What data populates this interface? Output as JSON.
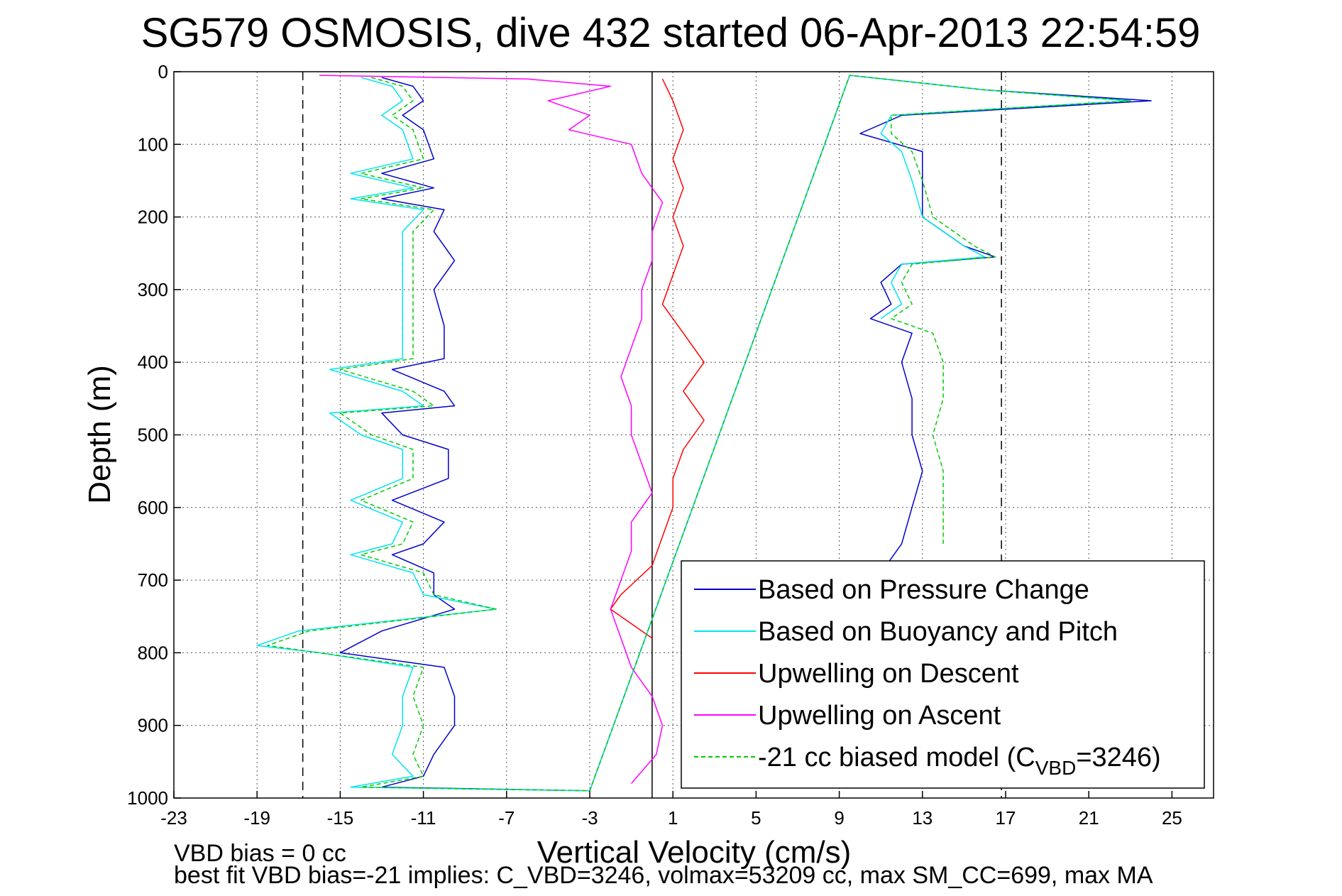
{
  "chart_data": {
    "type": "line",
    "title": "SG579 OSMOSIS, dive 432 started 06-Apr-2013 22:54:59",
    "xlabel": "Vertical Velocity (cm/s)",
    "ylabel": "Depth (m)",
    "xlim": [
      -23,
      27
    ],
    "ylim": [
      0,
      1000
    ],
    "y_reversed": true,
    "grid": true,
    "legend_position": "bottom-right",
    "xticks": [
      -23,
      -19,
      -15,
      -11,
      -7,
      -3,
      1,
      5,
      9,
      13,
      17,
      21,
      25
    ],
    "xtick_labels": [
      "-23",
      "-19",
      "-15",
      "-11",
      "-7",
      "-3",
      "1",
      "5",
      "9",
      "13",
      "17",
      "21",
      "25"
    ],
    "yticks": [
      0,
      100,
      200,
      300,
      400,
      500,
      600,
      700,
      800,
      900,
      1000
    ],
    "ytick_labels": [
      "0",
      "100",
      "200",
      "300",
      "400",
      "500",
      "600",
      "700",
      "800",
      "900",
      "1000"
    ],
    "reference_lines": [
      {
        "x": -16.8,
        "style": "dashed",
        "color": "#000000"
      },
      {
        "x": 16.8,
        "style": "dashed",
        "color": "#000000"
      },
      {
        "x": 0,
        "style": "solid",
        "color": "#000000"
      }
    ],
    "series": [
      {
        "name": "Based on Pressure Change",
        "color": "#0000cc",
        "points": [
          [
            -13,
            8
          ],
          [
            -11.5,
            20
          ],
          [
            -11,
            40
          ],
          [
            -12,
            60
          ],
          [
            -11,
            80
          ],
          [
            -10.5,
            120
          ],
          [
            -13,
            140
          ],
          [
            -10.5,
            160
          ],
          [
            -13,
            175
          ],
          [
            -10,
            190
          ],
          [
            -10.5,
            220
          ],
          [
            -9.5,
            260
          ],
          [
            -10.5,
            300
          ],
          [
            -10,
            350
          ],
          [
            -10,
            395
          ],
          [
            -12.5,
            410
          ],
          [
            -10,
            440
          ],
          [
            -9.5,
            460
          ],
          [
            -13,
            470
          ],
          [
            -12,
            500
          ],
          [
            -9.8,
            520
          ],
          [
            -9.8,
            560
          ],
          [
            -12.5,
            590
          ],
          [
            -10,
            620
          ],
          [
            -11,
            650
          ],
          [
            -12.5,
            665
          ],
          [
            -10.5,
            690
          ],
          [
            -10.5,
            720
          ],
          [
            -9.5,
            740
          ],
          [
            -13,
            770
          ],
          [
            -15,
            800
          ],
          [
            -10,
            820
          ],
          [
            -9.5,
            860
          ],
          [
            -9.5,
            900
          ],
          [
            -10.5,
            940
          ],
          [
            -11,
            970
          ],
          [
            -13,
            985
          ],
          [
            -3,
            990
          ],
          [
            9.5,
            5
          ],
          [
            16,
            25
          ],
          [
            24,
            40
          ],
          [
            12,
            60
          ],
          [
            10,
            85
          ],
          [
            13,
            110
          ],
          [
            13,
            150
          ],
          [
            13,
            200
          ],
          [
            15,
            240
          ],
          [
            16.5,
            255
          ],
          [
            12,
            265
          ],
          [
            11,
            290
          ],
          [
            11.5,
            320
          ],
          [
            10.5,
            340
          ],
          [
            12.5,
            360
          ],
          [
            12,
            400
          ],
          [
            12.5,
            450
          ],
          [
            12.5,
            500
          ],
          [
            13,
            550
          ],
          [
            12.5,
            600
          ],
          [
            12,
            650
          ],
          [
            11,
            690
          ]
        ]
      },
      {
        "name": "Based on Buoyancy and Pitch",
        "color": "#00e5ee",
        "points": [
          [
            -14,
            8
          ],
          [
            -12.5,
            20
          ],
          [
            -12,
            40
          ],
          [
            -13,
            60
          ],
          [
            -12,
            80
          ],
          [
            -11.5,
            120
          ],
          [
            -14.5,
            140
          ],
          [
            -11.5,
            160
          ],
          [
            -14.5,
            175
          ],
          [
            -11,
            190
          ],
          [
            -12,
            220
          ],
          [
            -12,
            260
          ],
          [
            -12,
            300
          ],
          [
            -12,
            350
          ],
          [
            -12,
            395
          ],
          [
            -15.5,
            410
          ],
          [
            -12,
            440
          ],
          [
            -11,
            460
          ],
          [
            -15.5,
            470
          ],
          [
            -14,
            500
          ],
          [
            -12,
            520
          ],
          [
            -12,
            560
          ],
          [
            -14.5,
            590
          ],
          [
            -12,
            620
          ],
          [
            -12.5,
            650
          ],
          [
            -14.5,
            665
          ],
          [
            -11.5,
            690
          ],
          [
            -11,
            720
          ],
          [
            -7.5,
            740
          ],
          [
            -17,
            770
          ],
          [
            -19,
            790
          ],
          [
            -16,
            800
          ],
          [
            -11.5,
            820
          ],
          [
            -12,
            860
          ],
          [
            -12,
            900
          ],
          [
            -12.5,
            940
          ],
          [
            -11.5,
            970
          ],
          [
            -14.5,
            985
          ],
          [
            -3,
            990
          ],
          [
            9.5,
            5
          ],
          [
            16,
            25
          ],
          [
            23,
            40
          ],
          [
            11.5,
            60
          ],
          [
            11,
            85
          ],
          [
            12,
            110
          ],
          [
            12.5,
            150
          ],
          [
            13,
            200
          ],
          [
            15,
            240
          ],
          [
            16,
            255
          ],
          [
            12,
            265
          ],
          [
            11.5,
            290
          ],
          [
            12,
            320
          ],
          [
            11,
            340
          ]
        ]
      },
      {
        "name": "Upwelling on Descent",
        "color": "#ff0000",
        "points": [
          [
            0.5,
            10
          ],
          [
            1,
            40
          ],
          [
            1.5,
            80
          ],
          [
            1,
            120
          ],
          [
            1.5,
            160
          ],
          [
            1,
            200
          ],
          [
            1.5,
            240
          ],
          [
            1,
            280
          ],
          [
            0.5,
            320
          ],
          [
            1.5,
            360
          ],
          [
            2.5,
            400
          ],
          [
            1.5,
            440
          ],
          [
            2.5,
            480
          ],
          [
            1.5,
            520
          ],
          [
            1,
            560
          ],
          [
            1,
            600
          ],
          [
            0.5,
            640
          ],
          [
            0,
            680
          ],
          [
            -1.5,
            720
          ],
          [
            -2,
            740
          ],
          [
            -1,
            760
          ],
          [
            0,
            780
          ]
        ]
      },
      {
        "name": "Upwelling on Ascent",
        "color": "#ff00ff",
        "points": [
          [
            -1,
            980
          ],
          [
            0.2,
            940
          ],
          [
            0.5,
            900
          ],
          [
            0,
            860
          ],
          [
            -1,
            820
          ],
          [
            -1.5,
            780
          ],
          [
            -2,
            740
          ],
          [
            -1.5,
            700
          ],
          [
            -1,
            660
          ],
          [
            -1,
            620
          ],
          [
            0,
            580
          ],
          [
            -0.5,
            540
          ],
          [
            -1,
            500
          ],
          [
            -1,
            460
          ],
          [
            -1.5,
            420
          ],
          [
            -1,
            380
          ],
          [
            -0.5,
            340
          ],
          [
            -0.5,
            300
          ],
          [
            0,
            260
          ],
          [
            0,
            220
          ],
          [
            0.5,
            180
          ],
          [
            -0.5,
            140
          ],
          [
            -1,
            100
          ],
          [
            -4,
            80
          ],
          [
            -3,
            60
          ],
          [
            -5,
            40
          ],
          [
            -2,
            20
          ],
          [
            -6,
            10
          ],
          [
            -16,
            5
          ]
        ]
      },
      {
        "name": "-21 cc biased model (C_VBD=3246)",
        "color": "#00cc00",
        "dashed": true,
        "points": [
          [
            -13.5,
            8
          ],
          [
            -12,
            20
          ],
          [
            -11.5,
            40
          ],
          [
            -12.5,
            60
          ],
          [
            -11.5,
            80
          ],
          [
            -11,
            120
          ],
          [
            -14,
            140
          ],
          [
            -11,
            160
          ],
          [
            -14,
            175
          ],
          [
            -10.5,
            190
          ],
          [
            -11.5,
            220
          ],
          [
            -11.5,
            260
          ],
          [
            -11.5,
            300
          ],
          [
            -11.5,
            350
          ],
          [
            -11.5,
            395
          ],
          [
            -15,
            410
          ],
          [
            -11.5,
            440
          ],
          [
            -10.5,
            460
          ],
          [
            -15,
            470
          ],
          [
            -13.5,
            500
          ],
          [
            -11.5,
            520
          ],
          [
            -11.5,
            560
          ],
          [
            -14,
            590
          ],
          [
            -11.5,
            620
          ],
          [
            -12,
            650
          ],
          [
            -14,
            665
          ],
          [
            -11,
            690
          ],
          [
            -10.5,
            720
          ],
          [
            -7.5,
            740
          ],
          [
            -16.5,
            770
          ],
          [
            -18.5,
            790
          ],
          [
            -16,
            800
          ],
          [
            -11,
            820
          ],
          [
            -11.5,
            860
          ],
          [
            -11,
            900
          ],
          [
            -11.5,
            940
          ],
          [
            -11,
            970
          ],
          [
            -14,
            985
          ],
          [
            -3,
            990
          ],
          [
            9.5,
            5
          ],
          [
            16,
            25
          ],
          [
            23,
            40
          ],
          [
            11.5,
            60
          ],
          [
            11.5,
            85
          ],
          [
            12.5,
            110
          ],
          [
            13,
            150
          ],
          [
            13.5,
            200
          ],
          [
            15.5,
            240
          ],
          [
            16.5,
            255
          ],
          [
            12.5,
            265
          ],
          [
            12,
            290
          ],
          [
            12.5,
            320
          ],
          [
            11.5,
            340
          ],
          [
            13.5,
            360
          ],
          [
            14,
            400
          ],
          [
            14,
            450
          ],
          [
            13.5,
            500
          ],
          [
            14,
            550
          ],
          [
            14,
            600
          ],
          [
            14,
            650
          ]
        ]
      }
    ],
    "legend": [
      {
        "label": "Based on Pressure Change",
        "color": "#0000cc",
        "dashed": false
      },
      {
        "label": "Based on Buoyancy and Pitch",
        "color": "#00e5ee",
        "dashed": false
      },
      {
        "label": "Upwelling on Descent",
        "color": "#ff0000",
        "dashed": false
      },
      {
        "label": "Upwelling on Ascent",
        "color": "#ff00ff",
        "dashed": false
      },
      {
        "label": "-21 cc biased model (C",
        "sub": "VBD",
        "tail": "=3246)",
        "color": "#00cc00",
        "dashed": true
      }
    ],
    "annotations": [
      "VBD bias = 0 cc",
      "best fit VBD bias=-21 implies: C_VBD=3246, volmax=53209 cc, max SM_CC=699, max MA"
    ]
  }
}
